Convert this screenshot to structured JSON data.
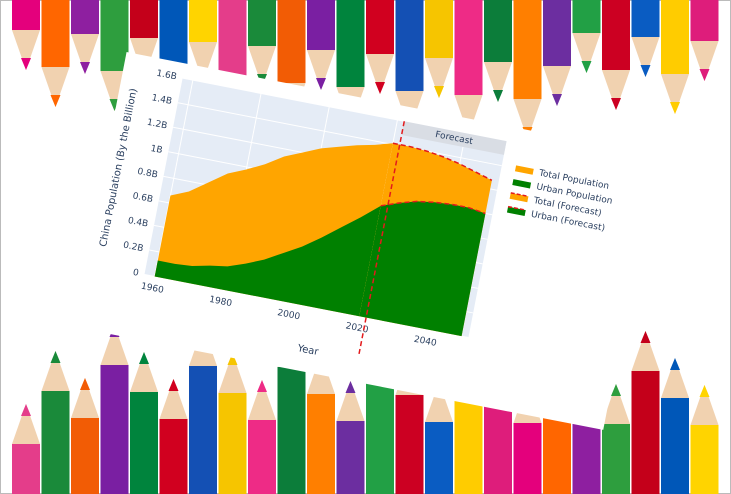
{
  "chart_data": {
    "type": "area",
    "x_label": "Year",
    "y_label": "China Population (By the Billion)",
    "annotation": "Forecast",
    "forecast_x": 2022,
    "x": [
      1960,
      1965,
      1970,
      1975,
      1980,
      1985,
      1990,
      1995,
      2000,
      2005,
      2010,
      2015,
      2020,
      2025,
      2030,
      2035,
      2040,
      2045,
      2050
    ],
    "series": [
      {
        "name": "Total Population",
        "color": "#ffa500",
        "values": [
          0.66,
          0.72,
          0.82,
          0.92,
          0.98,
          1.05,
          1.14,
          1.2,
          1.26,
          1.3,
          1.34,
          1.37,
          1.41,
          null,
          null,
          null,
          null,
          null,
          null
        ]
      },
      {
        "name": "Urban Population",
        "color": "#008000",
        "values": [
          0.13,
          0.13,
          0.14,
          0.17,
          0.19,
          0.24,
          0.3,
          0.38,
          0.46,
          0.56,
          0.67,
          0.78,
          0.9,
          null,
          null,
          null,
          null,
          null,
          null
        ]
      },
      {
        "name": "Total (Forecast)",
        "color": "#ffa500",
        "line_color": "#e31a1c",
        "dashed": true,
        "values": [
          null,
          null,
          null,
          null,
          null,
          null,
          null,
          null,
          null,
          null,
          null,
          null,
          1.41,
          1.41,
          1.4,
          1.38,
          1.35,
          1.31,
          1.27
        ]
      },
      {
        "name": "Urban (Forecast)",
        "color": "#008000",
        "line_color": "#e31a1c",
        "dashed": true,
        "values": [
          null,
          null,
          null,
          null,
          null,
          null,
          null,
          null,
          null,
          null,
          null,
          null,
          0.9,
          0.95,
          0.99,
          1.01,
          1.02,
          1.02,
          1.0
        ]
      }
    ],
    "xlim": [
      1957,
      2052
    ],
    "xticks": [
      1960,
      1980,
      2000,
      2020,
      2040
    ],
    "ylim": [
      0,
      1.6
    ],
    "yticks": [
      0,
      {
        "value": 0.2,
        "label": "0.2B"
      },
      {
        "value": 0.4,
        "label": "0.4B"
      },
      {
        "value": 0.6,
        "label": "0.6B"
      },
      {
        "value": 0.8,
        "label": "0.8B"
      },
      {
        "value": 1,
        "label": "1B"
      },
      {
        "value": 1.2,
        "label": "1.2B"
      },
      {
        "value": 1.4,
        "label": "1.4B"
      },
      {
        "value": 1.6,
        "label": "1.6B"
      }
    ],
    "grid": true,
    "legend": "right"
  }
}
